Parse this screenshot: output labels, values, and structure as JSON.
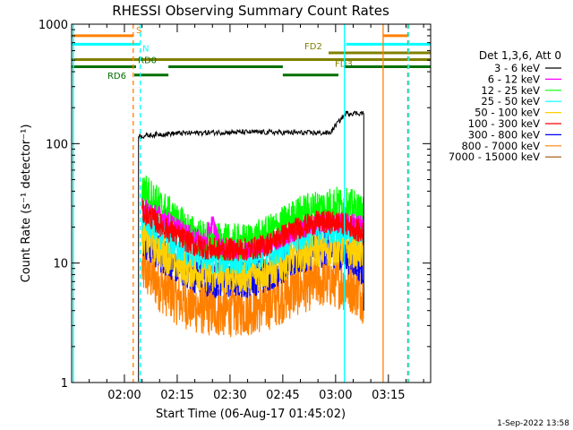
{
  "chart_data": {
    "type": "line",
    "title": "RHESSI Observing Summary Count Rates",
    "xlabel": "Start Time (06-Aug-17 01:45:02)",
    "ylabel": "Count Rate (s⁻¹ detector⁻¹)",
    "yscale": "log",
    "ylim": [
      1,
      1000
    ],
    "xlim_minutes": [
      0,
      102
    ],
    "x_ticks": [
      "02:00",
      "02:15",
      "02:30",
      "02:45",
      "03:00",
      "03:15"
    ],
    "x_tick_minutes": [
      15,
      30,
      45,
      60,
      75,
      90
    ],
    "y_ticks": [
      "1",
      "10",
      "100",
      "1000"
    ],
    "y_tick_values": [
      1,
      10,
      100,
      1000
    ],
    "legend_title": "Det 1,3,6, Att 0",
    "legend_placement": "right",
    "series": [
      {
        "name": "3 - 6 keV",
        "color": "#000000",
        "x": [
          19,
          25,
          30,
          40,
          50,
          60,
          70,
          73.5,
          78,
          83
        ],
        "values": [
          115,
          120,
          122,
          124,
          125,
          124,
          123,
          123,
          180,
          180
        ]
      },
      {
        "name": "6 - 12 keV",
        "color": "#ff00ff",
        "x": [
          20,
          25,
          30,
          34,
          38,
          40,
          42,
          45,
          50,
          55,
          60,
          65,
          70,
          75,
          80,
          83
        ],
        "values": [
          30,
          25,
          20,
          17,
          15,
          22,
          14,
          13,
          13,
          14,
          16,
          19,
          21,
          22,
          22,
          21
        ]
      },
      {
        "name": "12 - 25 keV",
        "color": "#00ff00",
        "x": [
          20,
          25,
          30,
          35,
          40,
          45,
          50,
          55,
          60,
          65,
          70,
          75,
          80,
          83
        ],
        "values": [
          42,
          30,
          22,
          17,
          15,
          15,
          15,
          17,
          21,
          26,
          29,
          31,
          29,
          25
        ]
      },
      {
        "name": "25 - 50 keV",
        "color": "#00ffff",
        "x": [
          20,
          25,
          30,
          35,
          40,
          45,
          50,
          55,
          60,
          65,
          70,
          75,
          80,
          83
        ],
        "values": [
          24,
          18,
          14,
          12,
          11,
          11,
          11,
          12,
          14,
          17,
          19,
          20,
          19,
          18
        ]
      },
      {
        "name": "50 - 100 keV",
        "color": "#ffd000",
        "x": [
          20,
          25,
          30,
          35,
          40,
          45,
          50,
          55,
          60,
          65,
          70,
          75,
          80,
          83
        ],
        "values": [
          17,
          13,
          10,
          8.5,
          8,
          8,
          8,
          8.5,
          10,
          12,
          13,
          13.5,
          13,
          12
        ]
      },
      {
        "name": "100 - 300 keV",
        "color": "#ff0000",
        "x": [
          20,
          25,
          30,
          35,
          40,
          45,
          50,
          55,
          60,
          65,
          70,
          75,
          80,
          83
        ],
        "values": [
          27,
          21,
          17,
          14,
          13,
          13,
          13,
          14,
          17,
          20,
          22,
          22,
          20,
          17
        ]
      },
      {
        "name": "300 - 800 keV",
        "color": "#0000ff",
        "x": [
          20,
          25,
          30,
          35,
          40,
          45,
          50,
          55,
          60,
          65,
          70,
          75,
          80,
          83
        ],
        "values": [
          16,
          12,
          9.5,
          8,
          7.3,
          7.2,
          7.3,
          8,
          9.5,
          11.5,
          13,
          13,
          11,
          9
        ]
      },
      {
        "name": "800 - 7000 keV",
        "color": "#ff8000",
        "x": [
          20,
          25,
          30,
          35,
          40,
          45,
          50,
          55,
          60,
          65,
          70,
          75,
          80,
          83
        ],
        "values": [
          9,
          6.5,
          5,
          4.3,
          4,
          4,
          4.1,
          4.4,
          5.2,
          6.2,
          7,
          7,
          6.2,
          5.2
        ]
      },
      {
        "name": "7000 - 15000 keV",
        "color": "#a05000",
        "x": [],
        "values": []
      }
    ],
    "vertical_markers": [
      {
        "minute": 0.5,
        "color": "#00ffff",
        "style": "solid"
      },
      {
        "minute": 17.5,
        "color": "#ff8000",
        "style": "dashed"
      },
      {
        "minute": 19.5,
        "color": "#00ffff",
        "style": "dashed"
      },
      {
        "minute": 77.5,
        "color": "#00ffff",
        "style": "solid"
      },
      {
        "minute": 88.5,
        "color": "#ff8000",
        "style": "solid"
      },
      {
        "minute": 95.5,
        "color": "#ff8000",
        "style": "dashed"
      },
      {
        "minute": 95.8,
        "color": "#00ffff",
        "style": "dashed"
      }
    ],
    "flag_bars": [
      {
        "name": "S",
        "label": "S",
        "color": "#ff8000",
        "value": 800,
        "segments": [
          [
            0,
            17.5
          ],
          [
            88.5,
            95.5
          ]
        ]
      },
      {
        "name": "N",
        "label": "N",
        "color": "#00ffff",
        "value": 680,
        "segments": [
          [
            0,
            19.5
          ],
          [
            78,
            102
          ]
        ]
      },
      {
        "name": "FD2",
        "label": "FD2",
        "color": "#808000",
        "value": 575,
        "segments": [
          [
            73,
            102
          ]
        ]
      },
      {
        "name": "FD3",
        "label": "FD3",
        "color": "#808000",
        "value": 505,
        "segments": [
          [
            0,
            102
          ]
        ]
      },
      {
        "name": "RD0",
        "label": "RD0",
        "color": "#007000",
        "value": 440,
        "segments": [
          [
            0,
            18.3
          ],
          [
            27.5,
            60
          ],
          [
            77.5,
            102
          ]
        ]
      },
      {
        "name": "RD6",
        "label": "RD6",
        "color": "#007000",
        "value": 375,
        "segments": [
          [
            17.8,
            27.5
          ],
          [
            60,
            75.8
          ]
        ]
      }
    ]
  },
  "timestamp": "1-Sep-2022 13:58"
}
